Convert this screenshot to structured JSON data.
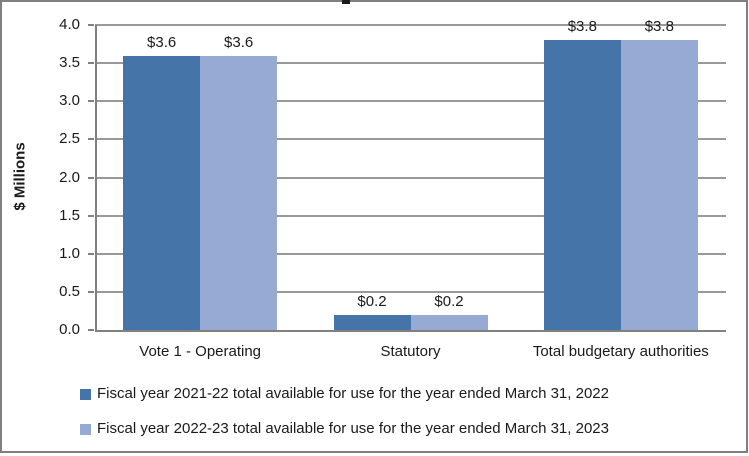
{
  "chart_data": {
    "type": "bar",
    "title": "",
    "categories": [
      "Vote 1 - Operating",
      "Statutory",
      "Total budgetary authorities"
    ],
    "series": [
      {
        "name": "Fiscal year 2021-22 total available for use for the year ended March 31, 2022",
        "color": "#4574a8",
        "values": [
          3.6,
          0.2,
          3.8
        ],
        "labels": [
          "$3.6",
          "$0.2",
          "$3.8"
        ]
      },
      {
        "name": "Fiscal year 2022-23 total available for use for the year ended March 31, 2023",
        "color": "#97aad3",
        "values": [
          3.6,
          0.2,
          3.8
        ],
        "labels": [
          "$3.6",
          "$0.2",
          "$3.8"
        ]
      }
    ],
    "xlabel": "",
    "ylabel": "$ Millions",
    "ylim": [
      0,
      4
    ],
    "ytick_step": 0.5,
    "yticks": [
      "0.0",
      "0.5",
      "1.0",
      "1.5",
      "2.0",
      "2.5",
      "3.0",
      "3.5",
      "4.0"
    ],
    "grid": true,
    "legend_position": "bottom-left"
  },
  "colors": {
    "bar_dark_blue": "#4574a8",
    "bar_light_blue": "#97aad3",
    "gridline": "#999999",
    "axis": "#808080",
    "frame_border": "#7f7f7f",
    "text": "#1a1a1a",
    "background": "#ffffff"
  }
}
